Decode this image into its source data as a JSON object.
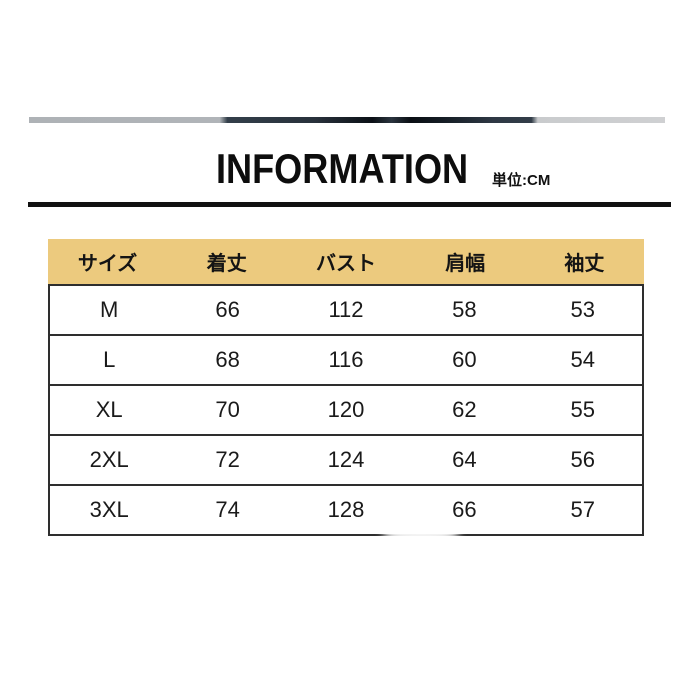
{
  "header": {
    "title": "INFORMATION",
    "unit_label": "単位:CM"
  },
  "size_table": {
    "columns": [
      "サイズ",
      "着丈",
      "バスト",
      "肩幅",
      "袖丈"
    ],
    "rows": [
      [
        "M",
        "66",
        "112",
        "58",
        "53"
      ],
      [
        "L",
        "68",
        "116",
        "60",
        "54"
      ],
      [
        "XL",
        "70",
        "120",
        "62",
        "55"
      ],
      [
        "2XL",
        "72",
        "124",
        "64",
        "56"
      ],
      [
        "3XL",
        "74",
        "128",
        "66",
        "57"
      ]
    ],
    "colors": {
      "header_bg": "#ecca7e",
      "border": "#2e2e2e",
      "text": "#1a1a1a"
    }
  }
}
